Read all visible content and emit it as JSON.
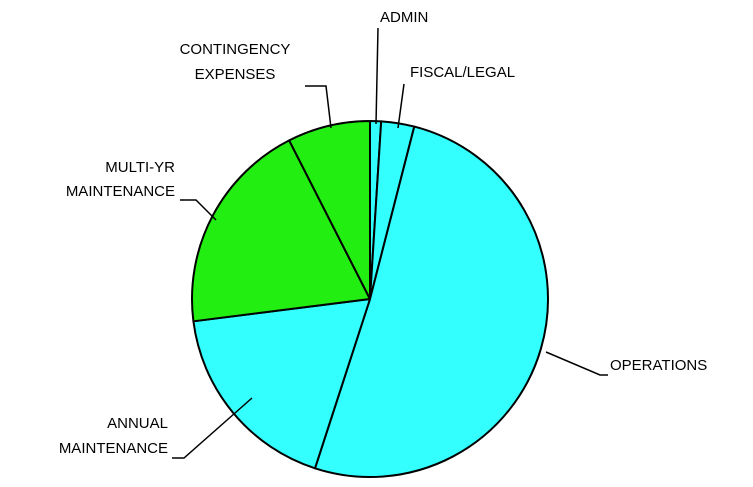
{
  "chart_data": {
    "type": "pie",
    "categories": [
      [
        "ADMIN"
      ],
      [
        "FISCAL/LEGAL"
      ],
      [
        "OPERATIONS"
      ],
      [
        "ANNUAL",
        "MAINTENANCE"
      ],
      [
        "MULTI-YR",
        "MAINTENANCE"
      ],
      [
        "CONTINGENCY",
        "EXPENSES"
      ]
    ],
    "values": [
      1,
      3,
      51,
      18,
      19.5,
      7.5
    ],
    "colors": [
      "#33ffff",
      "#33ffff",
      "#33ffff",
      "#33ffff",
      "#22ee11",
      "#22ee11"
    ],
    "start_angle": 0,
    "direction": "clockwise"
  }
}
